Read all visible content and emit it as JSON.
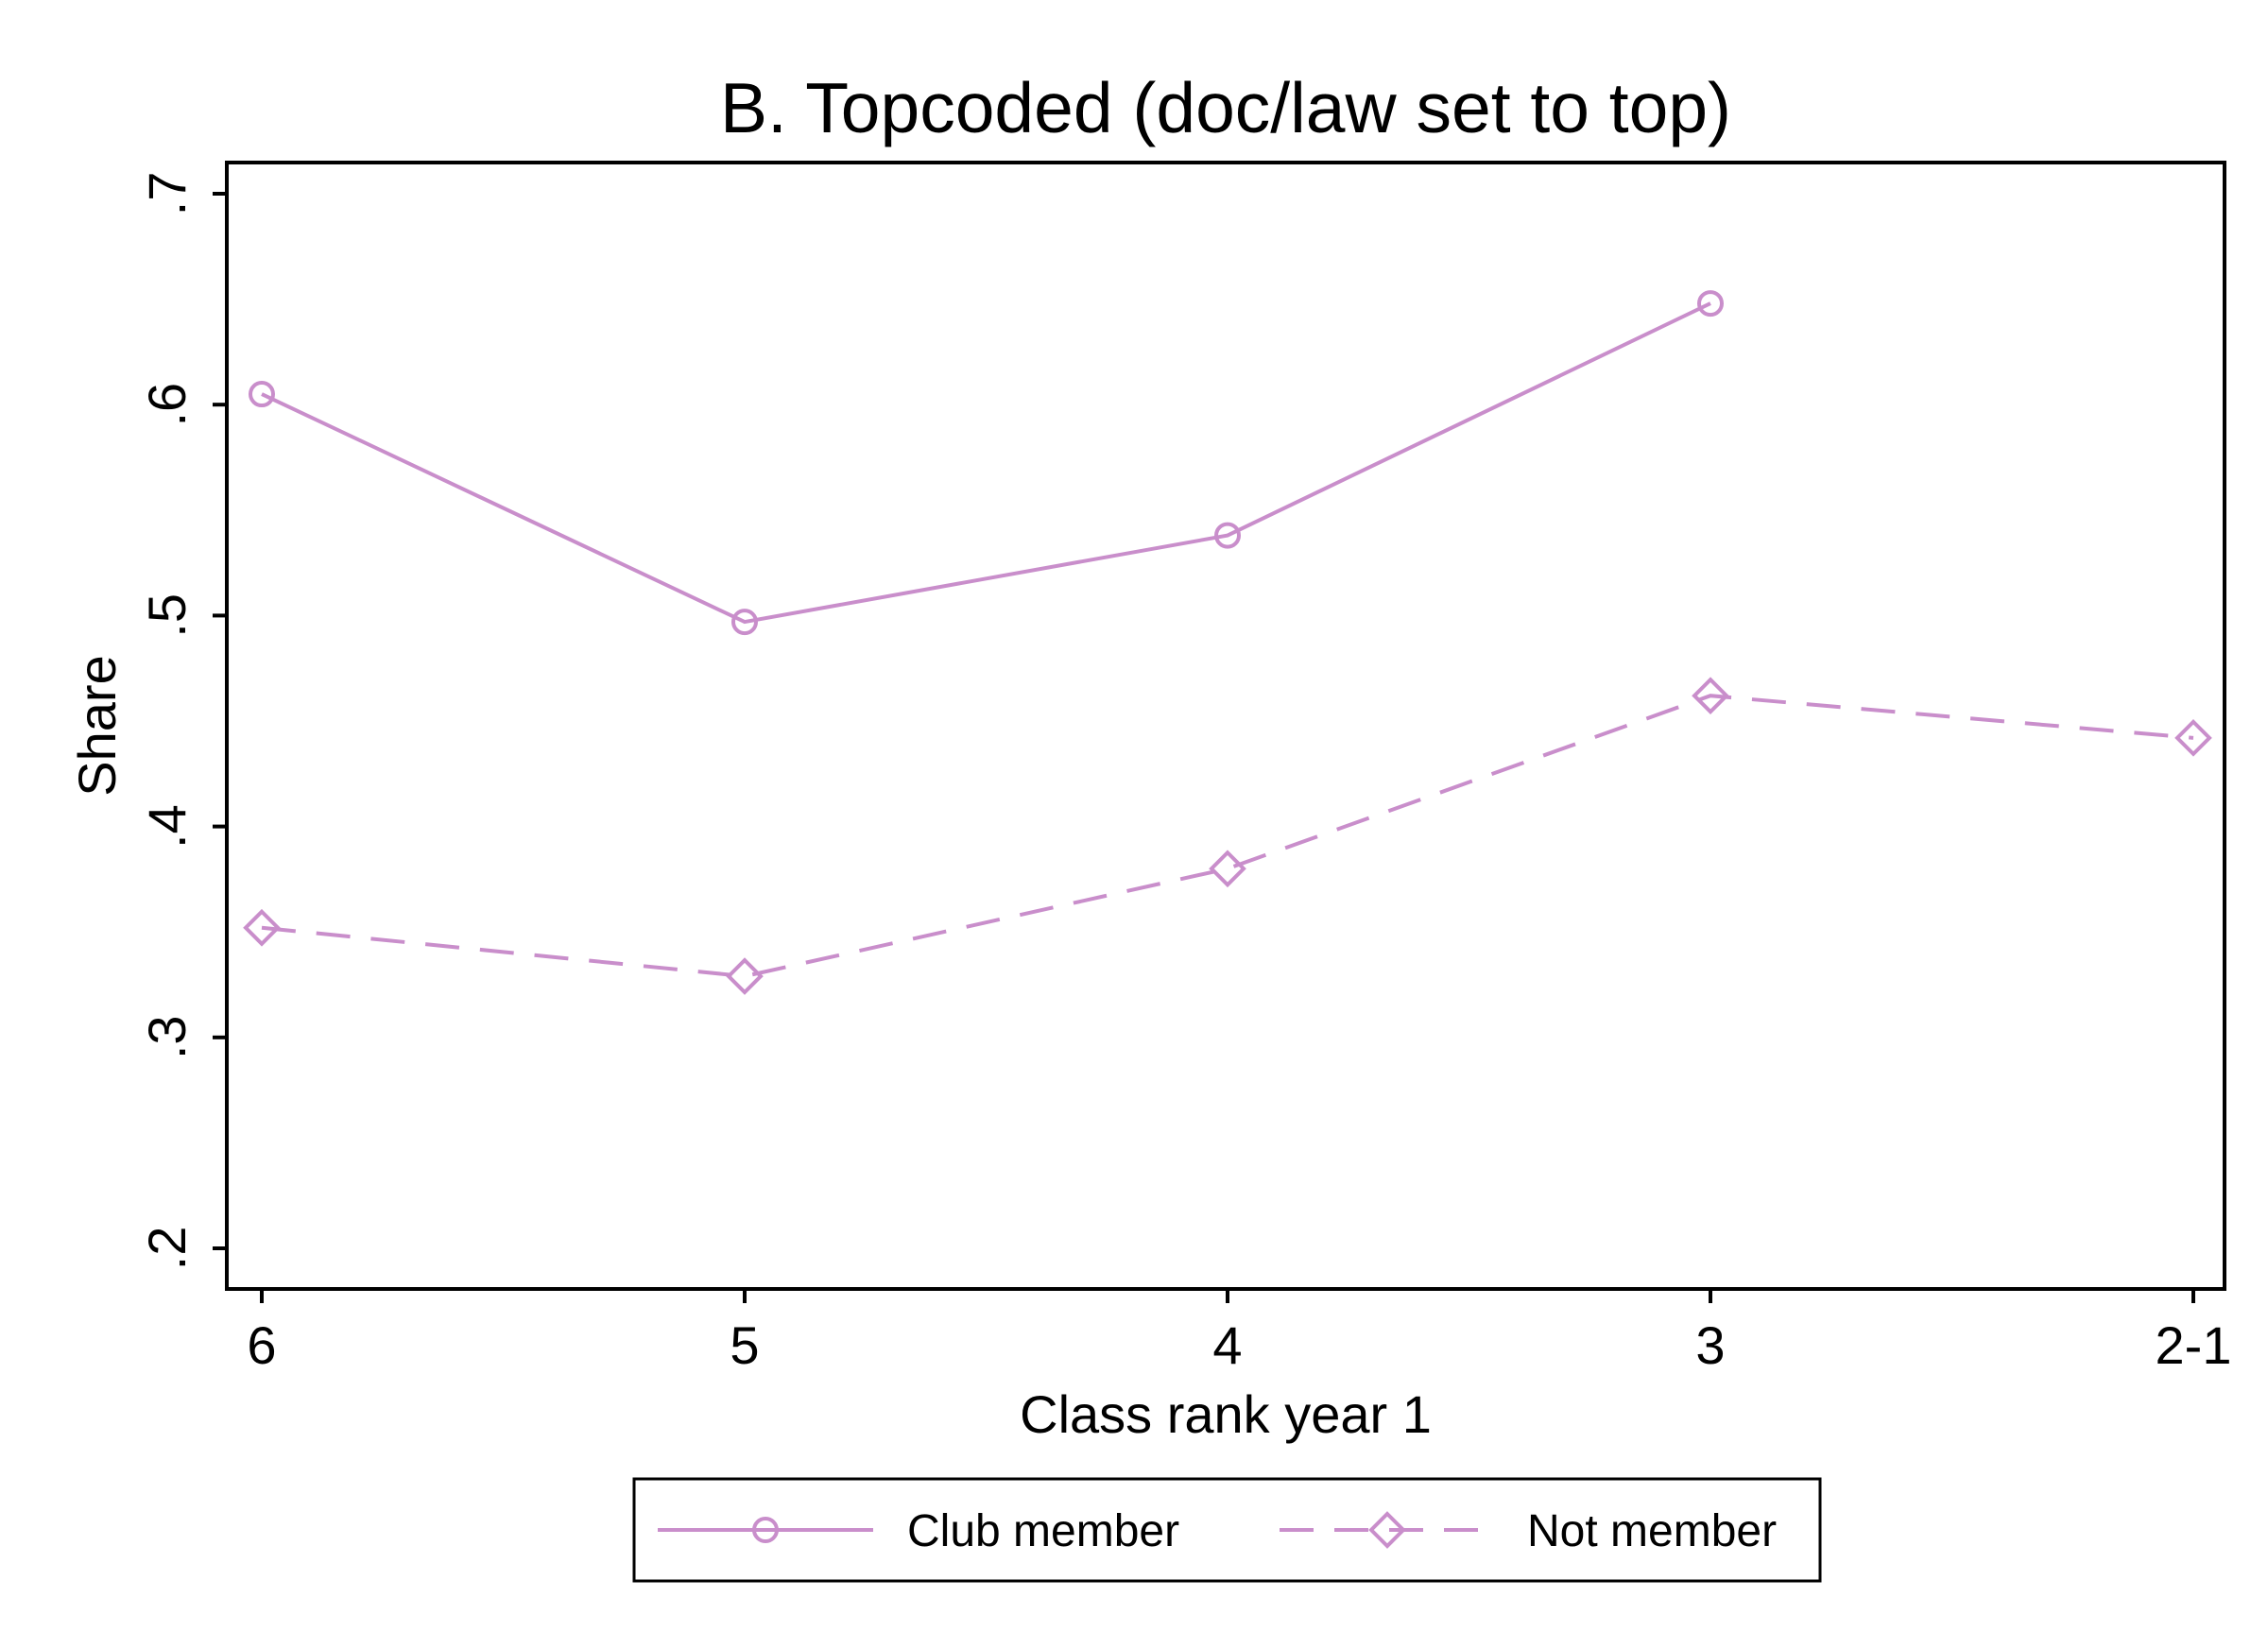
{
  "chart_data": {
    "type": "line",
    "title": "B. Topcoded (doc/law set to top)",
    "xlabel": "Class rank year 1",
    "ylabel": "Share",
    "categories": [
      "6",
      "5",
      "4",
      "3",
      "2-1"
    ],
    "ylim": [
      0.2,
      0.7
    ],
    "yticks": [
      0.2,
      0.3,
      0.4,
      0.5,
      0.6,
      0.7
    ],
    "ytick_labels": [
      ".2",
      ".3",
      ".4",
      ".5",
      ".6",
      ".7"
    ],
    "grid": false,
    "legend_position": "bottom",
    "series": [
      {
        "name": "Club member",
        "values": [
          0.605,
          0.497,
          0.538,
          0.648,
          null
        ],
        "marker": "circle",
        "line_style": "solid",
        "color": "#c98ecb"
      },
      {
        "name": "Not member",
        "values": [
          0.352,
          0.329,
          0.38,
          0.462,
          0.442
        ],
        "marker": "diamond",
        "line_style": "dashed",
        "color": "#c98ecb"
      }
    ]
  }
}
